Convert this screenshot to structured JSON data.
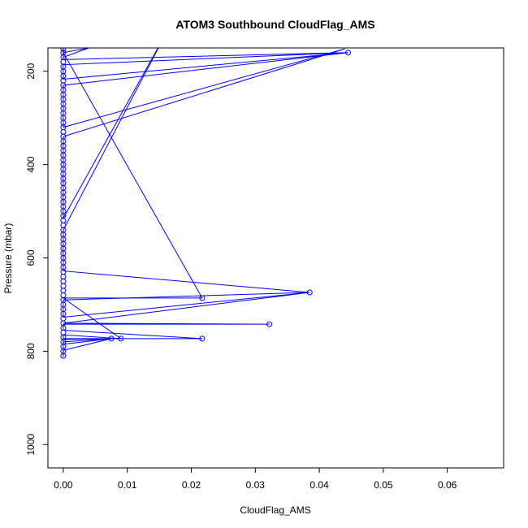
{
  "chart_data": {
    "type": "line",
    "title": "ATOM3 Southbound CloudFlag_AMS",
    "xlabel": "CloudFlag_AMS",
    "ylabel": "Pressure (mbar)",
    "xlim": [
      -0.0024,
      0.0688
    ],
    "ylim": [
      1050,
      150
    ],
    "y_reversed": true,
    "x_ticks": [
      "0.00",
      "0.01",
      "0.02",
      "0.03",
      "0.04",
      "0.05",
      "0.06"
    ],
    "y_ticks": [
      "200",
      "400",
      "600",
      "800",
      "1000"
    ],
    "grid": false,
    "legend": "none",
    "colors": {
      "series": "#0000ff",
      "axes": "#000000"
    },
    "markers": "open-circle",
    "series": [
      {
        "points": [
          [
            0,
            150
          ],
          [
            0,
            160
          ],
          [
            0,
            175
          ],
          [
            0.0445,
            160
          ],
          [
            0,
            186
          ],
          [
            0,
            200
          ],
          [
            0,
            217
          ],
          [
            0.0445,
            160
          ],
          [
            0,
            230
          ],
          [
            0,
            250
          ],
          [
            0,
            270
          ],
          [
            0,
            300
          ],
          [
            0,
            320
          ],
          [
            0.044,
            152
          ],
          [
            0,
            340
          ],
          [
            0,
            380
          ],
          [
            0,
            400
          ],
          [
            0,
            450
          ],
          [
            0,
            500
          ],
          [
            0,
            515
          ],
          [
            0.016,
            120
          ],
          [
            0,
            540
          ],
          [
            0,
            560
          ],
          [
            0,
            590
          ],
          [
            0,
            610
          ],
          [
            0,
            628
          ],
          [
            0.0385,
            674
          ],
          [
            0,
            690
          ],
          [
            0,
            705
          ],
          [
            0,
            727
          ],
          [
            0.0385,
            674
          ],
          [
            0,
            740
          ],
          [
            0.0322,
            742
          ],
          [
            0,
            742
          ],
          [
            0,
            755
          ],
          [
            0.0217,
            773
          ],
          [
            0,
            773
          ],
          [
            0,
            785
          ],
          [
            0.0075,
            773
          ],
          [
            0,
            798
          ],
          [
            0,
            810
          ]
        ]
      },
      {
        "points": [
          [
            0,
            170
          ],
          [
            0.004,
            150
          ],
          [
            0,
            160
          ],
          [
            0.0217,
            686
          ],
          [
            0,
            686
          ],
          [
            0.009,
            773
          ],
          [
            0,
            765
          ],
          [
            0,
            775
          ],
          [
            0.0075,
            773
          ],
          [
            0,
            780
          ],
          [
            0,
            800
          ],
          [
            0,
            810
          ],
          [
            0,
            812
          ]
        ]
      }
    ],
    "markers_visible": [
      [
        0.0445,
        160
      ],
      [
        0.0385,
        674
      ],
      [
        0.0322,
        742
      ],
      [
        0.0217,
        686
      ],
      [
        0.0217,
        773
      ],
      [
        0.009,
        773
      ],
      [
        0.0075,
        773
      ],
      [
        0,
        152
      ],
      [
        0,
        160
      ],
      [
        0,
        170
      ],
      [
        0,
        180
      ],
      [
        0,
        190
      ],
      [
        0,
        200
      ],
      [
        0,
        210
      ],
      [
        0,
        220
      ],
      [
        0,
        230
      ],
      [
        0,
        240
      ],
      [
        0,
        250
      ],
      [
        0,
        260
      ],
      [
        0,
        270
      ],
      [
        0,
        280
      ],
      [
        0,
        290
      ],
      [
        0,
        300
      ],
      [
        0,
        310
      ],
      [
        0,
        320
      ],
      [
        0,
        330
      ],
      [
        0,
        340
      ],
      [
        0,
        350
      ],
      [
        0,
        360
      ],
      [
        0,
        370
      ],
      [
        0,
        380
      ],
      [
        0,
        390
      ],
      [
        0,
        400
      ],
      [
        0,
        410
      ],
      [
        0,
        420
      ],
      [
        0,
        430
      ],
      [
        0,
        440
      ],
      [
        0,
        450
      ],
      [
        0,
        460
      ],
      [
        0,
        470
      ],
      [
        0,
        480
      ],
      [
        0,
        490
      ],
      [
        0,
        500
      ],
      [
        0,
        510
      ],
      [
        0,
        520
      ],
      [
        0,
        530
      ],
      [
        0,
        540
      ],
      [
        0,
        550
      ],
      [
        0,
        560
      ],
      [
        0,
        570
      ],
      [
        0,
        580
      ],
      [
        0,
        590
      ],
      [
        0,
        600
      ],
      [
        0,
        610
      ],
      [
        0,
        620
      ],
      [
        0,
        630
      ],
      [
        0,
        640
      ],
      [
        0,
        650
      ],
      [
        0,
        660
      ],
      [
        0,
        670
      ],
      [
        0,
        680
      ],
      [
        0,
        690
      ],
      [
        0,
        700
      ],
      [
        0,
        710
      ],
      [
        0,
        720
      ],
      [
        0,
        730
      ],
      [
        0,
        740
      ],
      [
        0,
        750
      ],
      [
        0,
        760
      ],
      [
        0,
        770
      ],
      [
        0,
        780
      ],
      [
        0,
        790
      ],
      [
        0,
        800
      ],
      [
        0,
        810
      ]
    ]
  }
}
